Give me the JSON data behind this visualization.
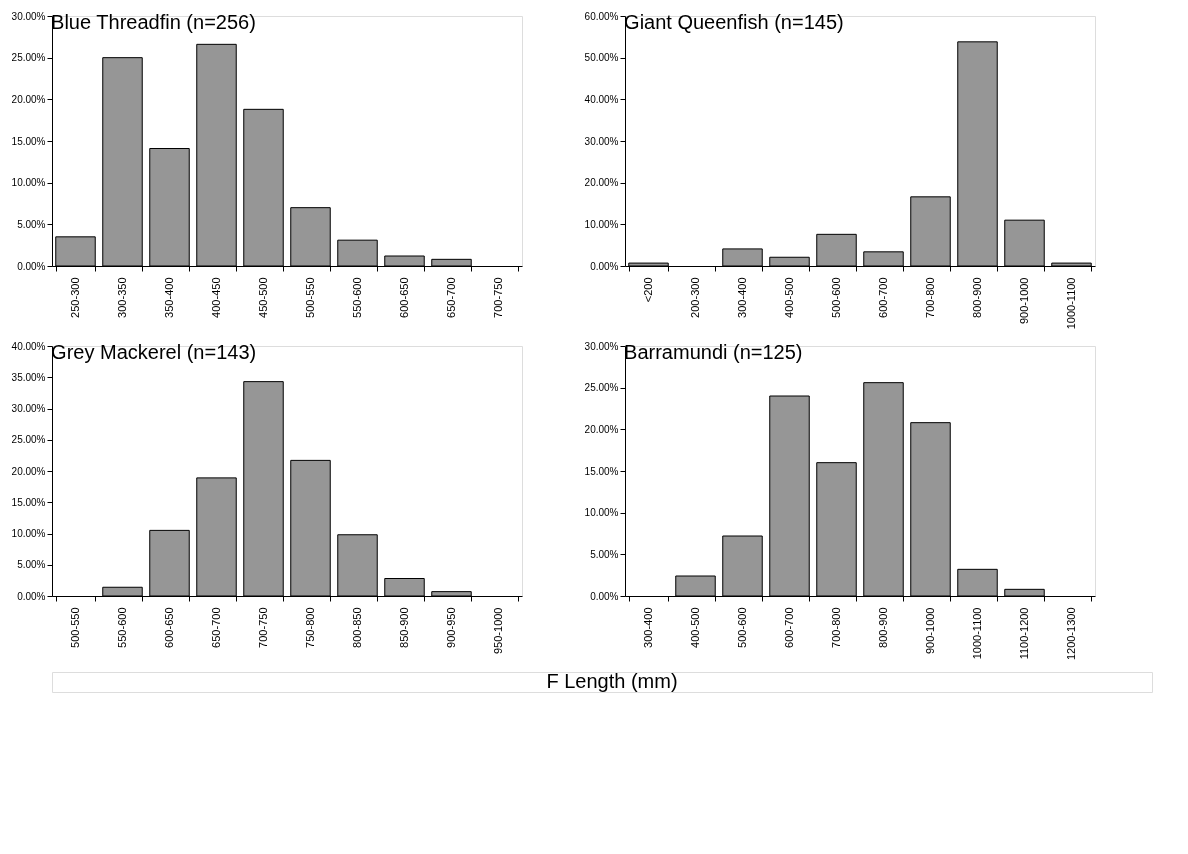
{
  "chart_data": [
    {
      "type": "bar",
      "title": "Blue Threadfin (n=256)",
      "categories": [
        "250-300",
        "300-350",
        "350-400",
        "400-450",
        "450-500",
        "500-550",
        "550-600",
        "600-650",
        "650-700",
        "700-750"
      ],
      "values": [
        3.5,
        25.0,
        14.1,
        26.6,
        18.8,
        7.0,
        3.1,
        1.2,
        0.8,
        0
      ],
      "color": "#969696",
      "ylim": [
        0,
        30
      ],
      "yticks": [
        {
          "value": 0,
          "label": "0.00%"
        },
        {
          "value": 5,
          "label": "5.00%"
        },
        {
          "value": 10,
          "label": "10.00%"
        },
        {
          "value": 15,
          "label": "15.00%"
        },
        {
          "value": 20,
          "label": "20.00%"
        },
        {
          "value": 25,
          "label": "25.00%"
        },
        {
          "value": 30,
          "label": "30.00%"
        }
      ],
      "grid": false
    },
    {
      "type": "bar",
      "title": "Giant Queenfish (n=145)",
      "categories": [
        "<200",
        "200-300",
        "300-400",
        "400-500",
        "500-600",
        "600-700",
        "700-800",
        "800-900",
        "900-1000",
        "1000-1100"
      ],
      "values": [
        0.7,
        0,
        4.1,
        2.1,
        7.6,
        3.4,
        16.6,
        53.8,
        11.0,
        0.7
      ],
      "color": "#969696",
      "ylim": [
        0,
        60
      ],
      "yticks": [
        {
          "value": 0,
          "label": "0.00%"
        },
        {
          "value": 10,
          "label": "10.00%"
        },
        {
          "value": 20,
          "label": "20.00%"
        },
        {
          "value": 30,
          "label": "30.00%"
        },
        {
          "value": 40,
          "label": "40.00%"
        },
        {
          "value": 50,
          "label": "50.00%"
        },
        {
          "value": 60,
          "label": "60.00%"
        }
      ],
      "grid": false
    },
    {
      "type": "bar",
      "title": "Grey Mackerel (n=143)",
      "categories": [
        "500-550",
        "550-600",
        "600-650",
        "650-700",
        "700-750",
        "750-800",
        "800-850",
        "850-900",
        "900-950",
        "950-1000"
      ],
      "values": [
        0,
        1.4,
        10.5,
        18.9,
        34.3,
        21.7,
        9.8,
        2.8,
        0.7,
        0
      ],
      "color": "#969696",
      "ylim": [
        0,
        40
      ],
      "yticks": [
        {
          "value": 0,
          "label": "0.00%"
        },
        {
          "value": 5,
          "label": "5.00%"
        },
        {
          "value": 10,
          "label": "10.00%"
        },
        {
          "value": 15,
          "label": "15.00%"
        },
        {
          "value": 20,
          "label": "20.00%"
        },
        {
          "value": 25,
          "label": "25.00%"
        },
        {
          "value": 30,
          "label": "30.00%"
        },
        {
          "value": 35,
          "label": "35.00%"
        },
        {
          "value": 40,
          "label": "40.00%"
        }
      ],
      "grid": false
    },
    {
      "type": "bar",
      "title": "Barramundi (n=125)",
      "categories": [
        "300-400",
        "400-500",
        "500-600",
        "600-700",
        "700-800",
        "800-900",
        "900-1000",
        "1000-1100",
        "1100-1200",
        "1200-1300"
      ],
      "values": [
        0,
        2.4,
        7.2,
        24.0,
        16.0,
        25.6,
        20.8,
        3.2,
        0.8,
        0
      ],
      "color": "#969696",
      "ylim": [
        0,
        30
      ],
      "yticks": [
        {
          "value": 0,
          "label": "0.00%"
        },
        {
          "value": 5,
          "label": "5.00%"
        },
        {
          "value": 10,
          "label": "10.00%"
        },
        {
          "value": 15,
          "label": "15.00%"
        },
        {
          "value": 20,
          "label": "20.00%"
        },
        {
          "value": 25,
          "label": "25.00%"
        },
        {
          "value": 30,
          "label": "30.00%"
        }
      ],
      "grid": false,
      "annotations": [
        "F Length (mm)"
      ]
    }
  ]
}
